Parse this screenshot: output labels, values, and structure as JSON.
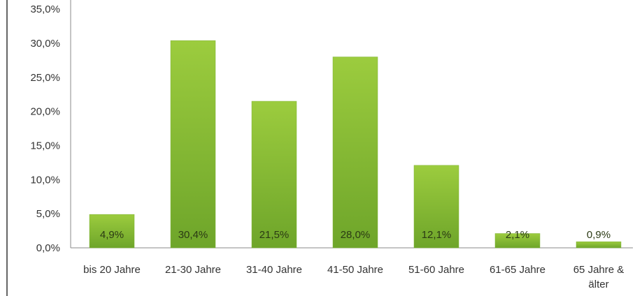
{
  "chart_data": {
    "type": "bar",
    "categories": [
      "bis 20 Jahre",
      "21-30 Jahre",
      "31-40 Jahre",
      "41-50 Jahre",
      "51-60 Jahre",
      "61-65 Jahre",
      "65 Jahre & älter"
    ],
    "values": [
      4.9,
      30.4,
      21.5,
      28.0,
      12.1,
      2.1,
      0.9
    ],
    "data_labels": [
      "4,9%",
      "30,4%",
      "21,5%",
      "28,0%",
      "12,1%",
      "2,1%",
      "0,9%"
    ],
    "y_ticks": [
      "0,0%",
      "5,0%",
      "10,0%",
      "15,0%",
      "20,0%",
      "25,0%",
      "30,0%",
      "35,0%"
    ],
    "ylim": [
      0,
      35
    ],
    "grid": false,
    "legend": "none",
    "bar_color": "#8cc43c"
  }
}
